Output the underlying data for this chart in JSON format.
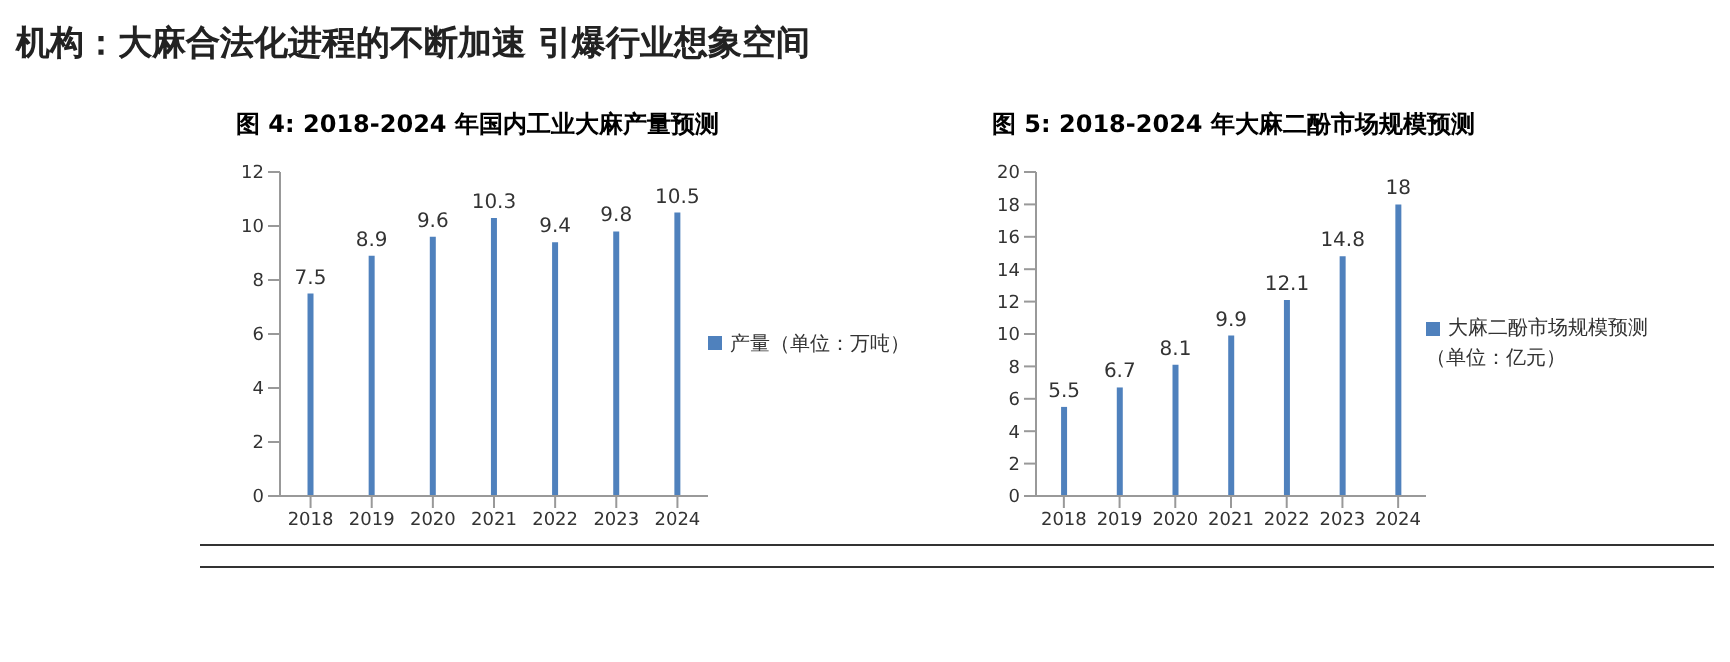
{
  "chart_data": [
    {
      "type": "bar",
      "title": "图 4: 2018-2024 年国内工业大麻产量预测",
      "annotations": [
        "机构：大麻合法化进程的不断加速 引爆行业想象空间"
      ],
      "categories": [
        "2018",
        "2019",
        "2020",
        "2021",
        "2022",
        "2023",
        "2024"
      ],
      "series": [
        {
          "name": "产量（单位：万吨）",
          "color": "#4f81bd",
          "values": [
            7.5,
            8.9,
            9.6,
            10.3,
            9.4,
            9.8,
            10.5
          ]
        }
      ],
      "ylim": [
        0,
        12
      ],
      "yticks": [
        0,
        2,
        4,
        6,
        8,
        10,
        12
      ],
      "grid": false,
      "legend": "right",
      "data_labels": true
    },
    {
      "type": "bar",
      "title": "图 5: 2018-2024 年大麻二酚市场规模预测",
      "categories": [
        "2018",
        "2019",
        "2020",
        "2021",
        "2022",
        "2023",
        "2024"
      ],
      "series": [
        {
          "name": "大麻二酚市场规模预测（单位：亿元）",
          "color": "#4f81bd",
          "values": [
            5.5,
            6.7,
            8.1,
            9.9,
            12.1,
            14.8,
            18
          ]
        }
      ],
      "ylim": [
        0,
        20
      ],
      "yticks": [
        0,
        2,
        4,
        6,
        8,
        10,
        12,
        14,
        16,
        18,
        20
      ],
      "grid": false,
      "legend": "right",
      "data_labels": true
    }
  ]
}
